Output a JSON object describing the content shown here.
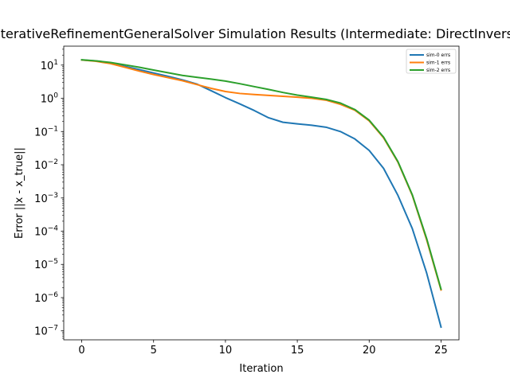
{
  "chart_data": {
    "type": "line",
    "title": "IterativeRefinementGeneralSolver Simulation Results (Intermediate: DirectInverse)",
    "xlabel": "Iteration",
    "ylabel": "Error ||x - x_true||",
    "xlim": [
      -1.25,
      26.25
    ],
    "ylim_log10": [
      -7.27,
      1.57
    ],
    "yscale": "log",
    "legend_position": "top-right",
    "grid": false,
    "x_ticks": [
      0,
      5,
      10,
      15,
      20,
      25
    ],
    "y_ticks": [
      {
        "exp": 1,
        "label": "10^1"
      },
      {
        "exp": 0,
        "label": "10^0"
      },
      {
        "exp": -1,
        "label": "10^-1"
      },
      {
        "exp": -2,
        "label": "10^-2"
      },
      {
        "exp": -3,
        "label": "10^-3"
      },
      {
        "exp": -4,
        "label": "10^-4"
      },
      {
        "exp": -5,
        "label": "10^-5"
      },
      {
        "exp": -6,
        "label": "10^-6"
      },
      {
        "exp": -7,
        "label": "10^-7"
      }
    ],
    "x": [
      0,
      1,
      2,
      3,
      4,
      5,
      6,
      7,
      8,
      9,
      10,
      11,
      12,
      13,
      14,
      15,
      16,
      17,
      18,
      19,
      20,
      21,
      22,
      23,
      24,
      25
    ],
    "series": [
      {
        "name": "sim-0 errs",
        "color": "#1f77b4",
        "values": [
          14.3,
          13.3,
          11.5,
          9.2,
          7.3,
          5.8,
          4.6,
          3.6,
          2.7,
          1.7,
          1.05,
          0.68,
          0.43,
          0.26,
          0.19,
          0.17,
          0.155,
          0.135,
          0.1,
          0.06,
          0.027,
          0.0078,
          0.0012,
          0.00012,
          5.5e-06,
          1.3e-07
        ]
      },
      {
        "name": "sim-1 errs",
        "color": "#ff7f0e",
        "values": [
          14.3,
          13.0,
          11.1,
          8.6,
          6.6,
          5.2,
          4.2,
          3.4,
          2.6,
          2.0,
          1.6,
          1.4,
          1.3,
          1.22,
          1.15,
          1.08,
          1.0,
          0.88,
          0.66,
          0.44,
          0.21,
          0.065,
          0.012,
          0.0012,
          5.5e-05,
          1.7e-06
        ]
      },
      {
        "name": "sim-2 errs",
        "color": "#2ca02c",
        "values": [
          14.4,
          13.4,
          12.0,
          10.2,
          8.6,
          7.1,
          5.9,
          4.9,
          4.3,
          3.8,
          3.3,
          2.75,
          2.25,
          1.85,
          1.5,
          1.25,
          1.08,
          0.93,
          0.72,
          0.46,
          0.22,
          0.068,
          0.0125,
          0.00125,
          6e-05,
          1.8e-06
        ]
      }
    ]
  }
}
